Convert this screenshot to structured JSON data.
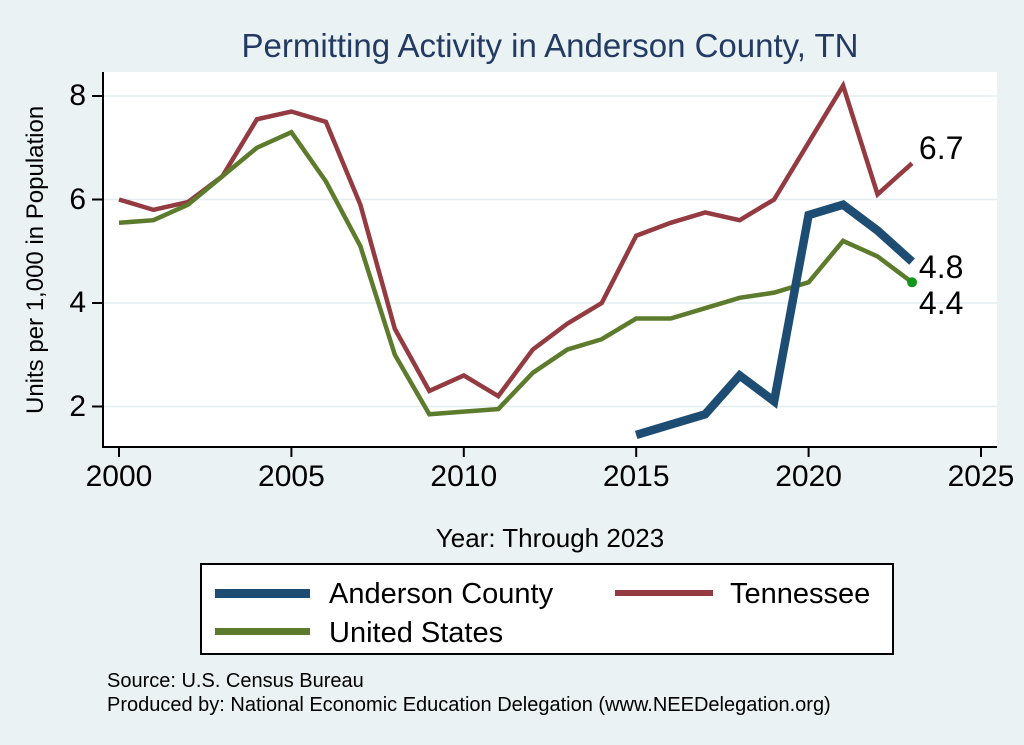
{
  "title": {
    "text": "Permitting Activity in Anderson County, TN",
    "color": "#233a63"
  },
  "colors": {
    "background": "#eaf2f3",
    "plot_background": "#ffffff",
    "gridline": "#e2edef",
    "axis": "#000000",
    "navy": "#1e4d74",
    "maroon": "#943b42",
    "olive": "#5c7b2c",
    "end_dot_green": "#12961e"
  },
  "chart_data": {
    "type": "line",
    "title": "Permitting Activity in Anderson County, TN",
    "xlabel": "Year: Through 2023",
    "ylabel": "Units per 1,000 in Population",
    "x_ticks": [
      2000,
      2005,
      2010,
      2015,
      2020,
      2025
    ],
    "y_ticks": [
      2,
      4,
      6,
      8
    ],
    "xlim": [
      1999.55,
      2025.45
    ],
    "ylim": [
      1.2,
      8.45
    ],
    "grid": "horizontal",
    "legend_position": "bottom",
    "series": [
      {
        "name": "Tennessee",
        "color": "#943b42",
        "width": 4.5,
        "x": [
          2000,
          2001,
          2002,
          2003,
          2004,
          2005,
          2006,
          2007,
          2008,
          2009,
          2010,
          2011,
          2012,
          2013,
          2014,
          2015,
          2016,
          2017,
          2018,
          2019,
          2020,
          2021,
          2022,
          2023
        ],
        "values": [
          6.0,
          5.8,
          5.95,
          6.45,
          7.55,
          7.7,
          7.5,
          5.9,
          3.5,
          2.3,
          2.6,
          2.2,
          3.1,
          3.6,
          4.0,
          5.3,
          5.55,
          5.75,
          5.6,
          6.0,
          7.1,
          8.2,
          6.1,
          6.7
        ]
      },
      {
        "name": "United States",
        "color": "#5c7b2c",
        "width": 4.5,
        "end_dot_color": "#12961e",
        "x": [
          2000,
          2001,
          2002,
          2003,
          2004,
          2005,
          2006,
          2007,
          2008,
          2009,
          2010,
          2011,
          2012,
          2013,
          2014,
          2015,
          2016,
          2017,
          2018,
          2019,
          2020,
          2021,
          2022,
          2023
        ],
        "values": [
          5.55,
          5.6,
          5.9,
          6.45,
          7.0,
          7.3,
          6.35,
          5.1,
          3.0,
          1.85,
          1.9,
          1.95,
          2.65,
          3.1,
          3.3,
          3.7,
          3.7,
          3.9,
          4.1,
          4.2,
          4.4,
          5.2,
          4.9,
          4.4
        ]
      },
      {
        "name": "Anderson County",
        "color": "#1e4d74",
        "width": 8.5,
        "x": [
          2015,
          2016,
          2017,
          2018,
          2019,
          2020,
          2021,
          2022,
          2023
        ],
        "values": [
          1.45,
          1.65,
          1.85,
          2.6,
          2.1,
          5.7,
          5.9,
          5.4,
          4.8
        ]
      }
    ],
    "annotations": [
      {
        "text": "6.7",
        "x": 2023.2,
        "y": 7.0
      },
      {
        "text": "4.8",
        "x": 2023.2,
        "y": 4.7
      },
      {
        "text": "4.4",
        "x": 2023.2,
        "y": 4.0
      }
    ]
  },
  "legend": {
    "items": [
      {
        "label": "Anderson County",
        "color": "#1e4d74",
        "thickness": 9
      },
      {
        "label": "Tennessee",
        "color": "#943b42",
        "thickness": 6
      },
      {
        "label": "United States",
        "color": "#5c7b2c",
        "thickness": 7
      }
    ]
  },
  "footer": {
    "source": "Source: U.S. Census Bureau",
    "produced_by": "Produced by: National Economic Education Delegation (www.NEEDelegation.org)"
  }
}
